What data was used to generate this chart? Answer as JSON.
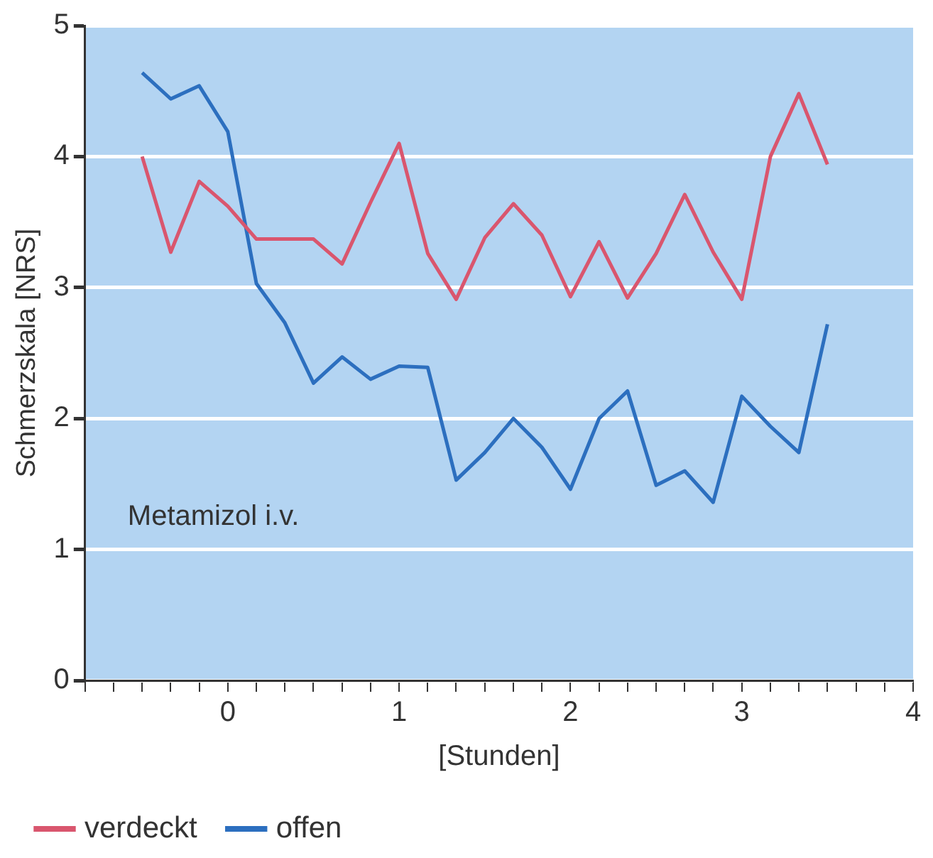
{
  "chart_data": {
    "type": "line",
    "xlabel": "[Stunden]",
    "ylabel": "Schmerzskala [NRS]",
    "x": [
      -0.5,
      -0.333,
      -0.167,
      0,
      0.167,
      0.333,
      0.5,
      0.667,
      0.833,
      1,
      1.167,
      1.333,
      1.5,
      1.667,
      1.833,
      2,
      2.167,
      2.333,
      2.5,
      2.667,
      2.833,
      3,
      3.167,
      3.333,
      3.5
    ],
    "series": [
      {
        "name": "verdeckt",
        "color": "#d9566e",
        "values": [
          4.0,
          3.27,
          3.81,
          3.62,
          3.37,
          3.37,
          3.37,
          3.18,
          3.65,
          4.1,
          3.26,
          2.91,
          3.38,
          3.64,
          3.4,
          2.93,
          3.35,
          2.92,
          3.26,
          3.71,
          3.27,
          2.91,
          4.0,
          4.48,
          3.94
        ]
      },
      {
        "name": "offen",
        "color": "#2c6fbf",
        "values": [
          4.64,
          4.44,
          4.54,
          4.19,
          3.03,
          2.73,
          2.27,
          2.47,
          2.3,
          2.4,
          2.39,
          1.53,
          1.74,
          2.0,
          1.78,
          1.46,
          2.0,
          2.21,
          1.49,
          1.6,
          1.36,
          2.17,
          1.94,
          1.74,
          2.72
        ]
      }
    ],
    "xlim": [
      -0.833,
      4
    ],
    "xticks": [
      {
        "value": -0.833,
        "label": null
      },
      {
        "value": -0.667,
        "label": null
      },
      {
        "value": -0.5,
        "label": null
      },
      {
        "value": -0.333,
        "label": null
      },
      {
        "value": -0.167,
        "label": null
      },
      0,
      {
        "value": 0.167,
        "label": null
      },
      {
        "value": 0.333,
        "label": null
      },
      {
        "value": 0.5,
        "label": null
      },
      {
        "value": 0.667,
        "label": null
      },
      {
        "value": 0.833,
        "label": null
      },
      1,
      {
        "value": 1.167,
        "label": null
      },
      {
        "value": 1.333,
        "label": null
      },
      {
        "value": 1.5,
        "label": null
      },
      {
        "value": 1.667,
        "label": null
      },
      {
        "value": 1.833,
        "label": null
      },
      2,
      {
        "value": 2.167,
        "label": null
      },
      {
        "value": 2.333,
        "label": null
      },
      {
        "value": 2.5,
        "label": null
      },
      {
        "value": 2.667,
        "label": null
      },
      {
        "value": 2.833,
        "label": null
      },
      3,
      {
        "value": 3.167,
        "label": null
      },
      {
        "value": 3.333,
        "label": null
      },
      {
        "value": 3.5,
        "label": null
      },
      {
        "value": 3.667,
        "label": null
      },
      {
        "value": 3.833,
        "label": null
      },
      4
    ],
    "ylim": [
      0,
      5
    ],
    "yticks": [
      0,
      1,
      2,
      3,
      4,
      5
    ],
    "grid": "y",
    "legend": "bottom left",
    "marker": "none",
    "line_style": "solid",
    "annotations": [
      "Metamizol i.v."
    ]
  }
}
